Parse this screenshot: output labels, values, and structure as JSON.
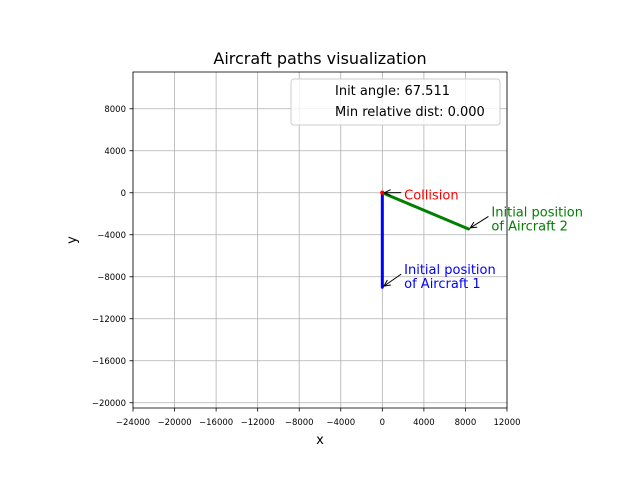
{
  "chart_data": {
    "type": "line",
    "title": "Aircraft paths visualization",
    "xlabel": "x",
    "ylabel": "y",
    "xlim": [
      -24000,
      12000
    ],
    "ylim": [
      -20500,
      11500
    ],
    "xticks": [
      -24000,
      -20000,
      -16000,
      -12000,
      -8000,
      -4000,
      0,
      4000,
      8000,
      12000
    ],
    "yticks": [
      -20000,
      -16000,
      -12000,
      -8000,
      -4000,
      0,
      4000,
      8000
    ],
    "grid": true,
    "legend": {
      "placement": "top-right",
      "entries": [
        "Init angle: 67.511",
        "Min relative dist: 0.000"
      ]
    },
    "series": [
      {
        "color": "#0000ff",
        "x": [
          0,
          0
        ],
        "y": [
          -9000,
          0
        ]
      },
      {
        "color": "#008000",
        "x": [
          8300,
          0
        ],
        "y": [
          -3450,
          0
        ]
      }
    ],
    "annotations": [
      {
        "text": "Collision",
        "color": "#ff0000",
        "point": [
          0,
          0
        ],
        "text_at": [
          2100,
          300
        ]
      },
      {
        "text": "Initial position of Aircraft 2",
        "lines": [
          "Initial position",
          "of Aircraft 2"
        ],
        "color": "#008000",
        "point": [
          8300,
          -3450
        ],
        "text_at": [
          10500,
          -1300
        ]
      },
      {
        "text": "Initial position of Aircraft 1",
        "lines": [
          "Initial position",
          "of Aircraft 1"
        ],
        "color": "#0000ff",
        "point": [
          0,
          -9000
        ],
        "text_at": [
          2100,
          -6800
        ]
      }
    ],
    "collision_point": [
      0,
      0
    ]
  }
}
